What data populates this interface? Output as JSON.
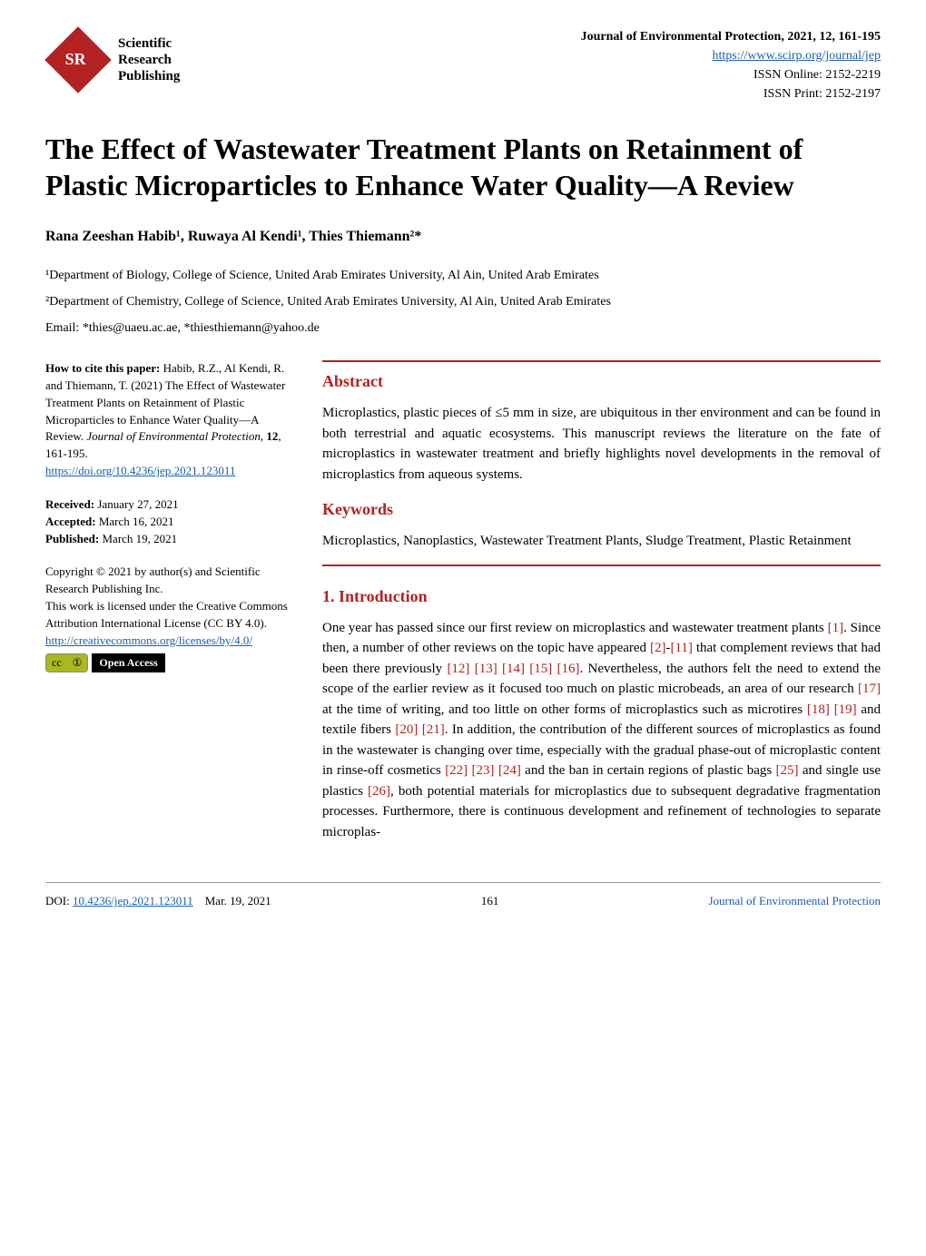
{
  "publisher": {
    "logo_text_line1": "Scientific",
    "logo_text_line2": "Research",
    "logo_text_line3": "Publishing"
  },
  "header": {
    "journal_ref": "Journal of Environmental Protection, 2021, 12, 161-195",
    "journal_url": "https://www.scirp.org/journal/jep",
    "issn_online": "ISSN Online: 2152-2219",
    "issn_print": "ISSN Print: 2152-2197"
  },
  "title": "The Effect of Wastewater Treatment Plants on Retainment of Plastic Microparticles to Enhance Water Quality—A Review",
  "authors": "Rana Zeeshan Habib¹, Ruwaya Al Kendi¹, Thies Thiemann²*",
  "affiliations": {
    "a1": "¹Department of Biology, College of Science, United Arab Emirates University, Al Ain, United Arab Emirates",
    "a2": "²Department of Chemistry, College of Science, United Arab Emirates University, Al Ain, United Arab Emirates"
  },
  "emails": "Email: *thies@uaeu.ac.ae, *thiesthiemann@yahoo.de",
  "cite": {
    "label": "How to cite this paper:",
    "text1": " Habib, R.Z., Al Kendi, R. and Thiemann, T. (2021) The Effect of Wastewater Treatment Plants on Retainment of Plastic Microparticles to Enhance Water Quality—A Review. ",
    "journal": "Journal of Environmental Protection",
    "text2": ", ",
    "volume": "12",
    "text3": ", 161-195.",
    "doi_url": "https://doi.org/10.4236/jep.2021.123011"
  },
  "dates": {
    "received_label": "Received:",
    "received": " January 27, 2021",
    "accepted_label": "Accepted:",
    "accepted": " March 16, 2021",
    "published_label": "Published:",
    "published": " March 19, 2021"
  },
  "copyright": {
    "line1": "Copyright © 2021 by author(s) and Scientific Research Publishing Inc.",
    "line2": "This work is licensed under the Creative Commons Attribution International License (CC BY 4.0).",
    "url": "http://creativecommons.org/licenses/by/4.0/",
    "cc": "cc",
    "by": "①",
    "oa_label": "Open Access"
  },
  "abstract": {
    "heading": "Abstract",
    "text": "Microplastics, plastic pieces of ≤5 mm in size, are ubiquitous in ther environment and can be found in both terrestrial and aquatic ecosystems. This manuscript reviews the literature on the fate of microplastics in wastewater treatment and briefly highlights novel developments in the removal of microplastics from aqueous systems."
  },
  "keywords": {
    "heading": "Keywords",
    "text": "Microplastics, Nanoplastics, Wastewater Treatment Plants, Sludge Treatment, Plastic Retainment"
  },
  "intro": {
    "heading": "1. Introduction",
    "p1_a": "One year has passed since our first review on microplastics and wastewater treatment plants ",
    "r1": "[1]",
    "p1_b": ". Since then, a number of other reviews on the topic have appeared ",
    "r2": "[2]",
    "p1_c": "-",
    "r11": "[11]",
    "p1_d": " that complement reviews that had been there previously ",
    "r12": "[12] [13] [14] [15] [16]",
    "p1_e": ". Nevertheless, the authors felt the need to extend the scope of the earlier review as it focused too much on plastic microbeads, an area of our research ",
    "r17": "[17]",
    "p1_f": " at the time of writing, and too little on other forms of microplastics such as microtires ",
    "r18": "[18] [19]",
    "p1_g": " and textile fibers ",
    "r20": "[20] [21]",
    "p1_h": ". In addition, the contribution of the different sources of microplastics as found in the wastewater is changing over time, especially with the gradual phase-out of microplastic content in rinse-off cosmetics ",
    "r22": "[22] [23] [24]",
    "p1_i": " and the ban in certain regions of plastic bags ",
    "r25": "[25]",
    "p1_j": " and single use plastics ",
    "r26": "[26]",
    "p1_k": ", both potential materials for microplastics due to subsequent degradative fragmentation processes. Furthermore, there is continuous development and refinement of technologies to separate microplas-"
  },
  "footer": {
    "doi_label": "DOI: ",
    "doi": "10.4236/jep.2021.123011",
    "date": "Mar. 19, 2021",
    "page": "161",
    "journal": "Journal of Environmental Protection"
  },
  "colors": {
    "accent": "#b22222",
    "link": "#1a5fb4",
    "text": "#000000",
    "background": "#ffffff"
  }
}
